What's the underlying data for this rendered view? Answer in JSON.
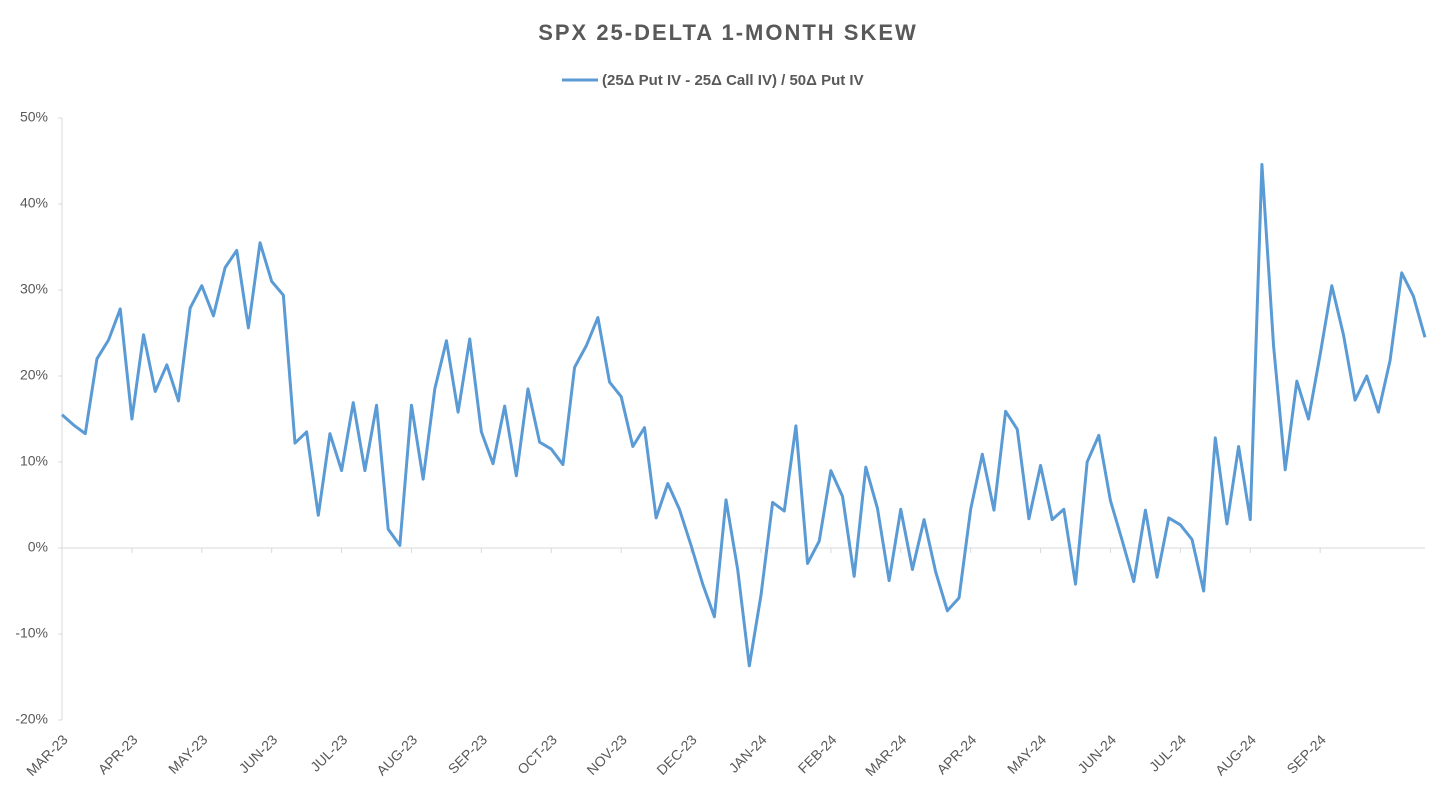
{
  "chart_data": {
    "type": "line",
    "title": "SPX 25-DELTA 1-MONTH SKEW",
    "categories": [
      "MAR-23",
      null,
      null,
      null,
      null,
      null,
      "APR-23",
      null,
      null,
      null,
      null,
      null,
      "MAY-23",
      null,
      null,
      null,
      null,
      null,
      "JUN-23",
      null,
      null,
      null,
      null,
      null,
      "JUL-23",
      null,
      null,
      null,
      null,
      null,
      "AUG-23",
      null,
      null,
      null,
      null,
      null,
      "SEP-23",
      null,
      null,
      null,
      null,
      null,
      "OCT-23",
      null,
      null,
      null,
      null,
      null,
      "NOV-23",
      null,
      null,
      null,
      null,
      null,
      "DEC-23",
      null,
      null,
      null,
      null,
      null,
      "JAN-24",
      null,
      null,
      null,
      null,
      null,
      "FEB-24",
      null,
      null,
      null,
      null,
      null,
      "MAR-24",
      null,
      null,
      null,
      null,
      null,
      "APR-24",
      null,
      null,
      null,
      null,
      null,
      "MAY-24",
      null,
      null,
      null,
      null,
      null,
      "JUN-24",
      null,
      null,
      null,
      null,
      null,
      "JUL-24",
      null,
      null,
      null,
      null,
      null,
      "AUG-24",
      null,
      null,
      null,
      null,
      null,
      "SEP-24",
      null,
      null,
      null,
      null,
      null,
      null,
      null,
      null,
      null
    ],
    "series": [
      {
        "name": "(25Δ Put IV - 25Δ Call IV) / 50Δ Put IV",
        "color": "#5b9bd5",
        "values": [
          15.5,
          14.3,
          13.3,
          22,
          24.2,
          27.8,
          15,
          24.8,
          18.2,
          21.3,
          17.1,
          27.9,
          30.5,
          27,
          32.6,
          34.6,
          25.6,
          35.5,
          31,
          29.4,
          12.2,
          13.5,
          3.8,
          13.3,
          9,
          16.9,
          9,
          16.6,
          2.2,
          0.3,
          16.6,
          8,
          18.5,
          24.1,
          15.8,
          24.3,
          13.5,
          9.8,
          16.5,
          8.4,
          18.5,
          12.3,
          11.5,
          9.7,
          21,
          23.5,
          26.8,
          19.3,
          17.6,
          11.8,
          14,
          3.5,
          7.5,
          4.5,
          0.3,
          -4.2,
          -8,
          5.6,
          -2.5,
          -13.7,
          -5.5,
          5.3,
          4.3,
          14.2,
          -1.8,
          0.8,
          9,
          6,
          -3.3,
          9.4,
          4.6,
          -3.8,
          4.5,
          -2.5,
          3.3,
          -2.8,
          -7.3,
          -5.8,
          4.5,
          10.9,
          4.4,
          15.9,
          13.8,
          3.4,
          9.6,
          3.3,
          4.5,
          -4.2,
          10,
          13.1,
          5.5,
          0.9,
          -3.9,
          4.4,
          -3.4,
          3.5,
          2.7,
          1,
          -5,
          12.8,
          2.8,
          11.8,
          3.3,
          44.6,
          23.5,
          9.1,
          19.4,
          15,
          22.5,
          30.5,
          24.8,
          17.2,
          20,
          15.8,
          21.8,
          32,
          29.3,
          24.5
        ]
      }
    ],
    "ylim": [
      -20,
      50
    ],
    "yticks": [
      {
        "value": -20,
        "label": "-20%"
      },
      {
        "value": -10,
        "label": "-10%"
      },
      {
        "value": 0,
        "label": "0%"
      },
      {
        "value": 10,
        "label": "10%"
      },
      {
        "value": 20,
        "label": "20%"
      },
      {
        "value": 30,
        "label": "30%"
      },
      {
        "value": 40,
        "label": "40%"
      },
      {
        "value": 50,
        "label": "50%"
      }
    ],
    "legend": "top"
  }
}
